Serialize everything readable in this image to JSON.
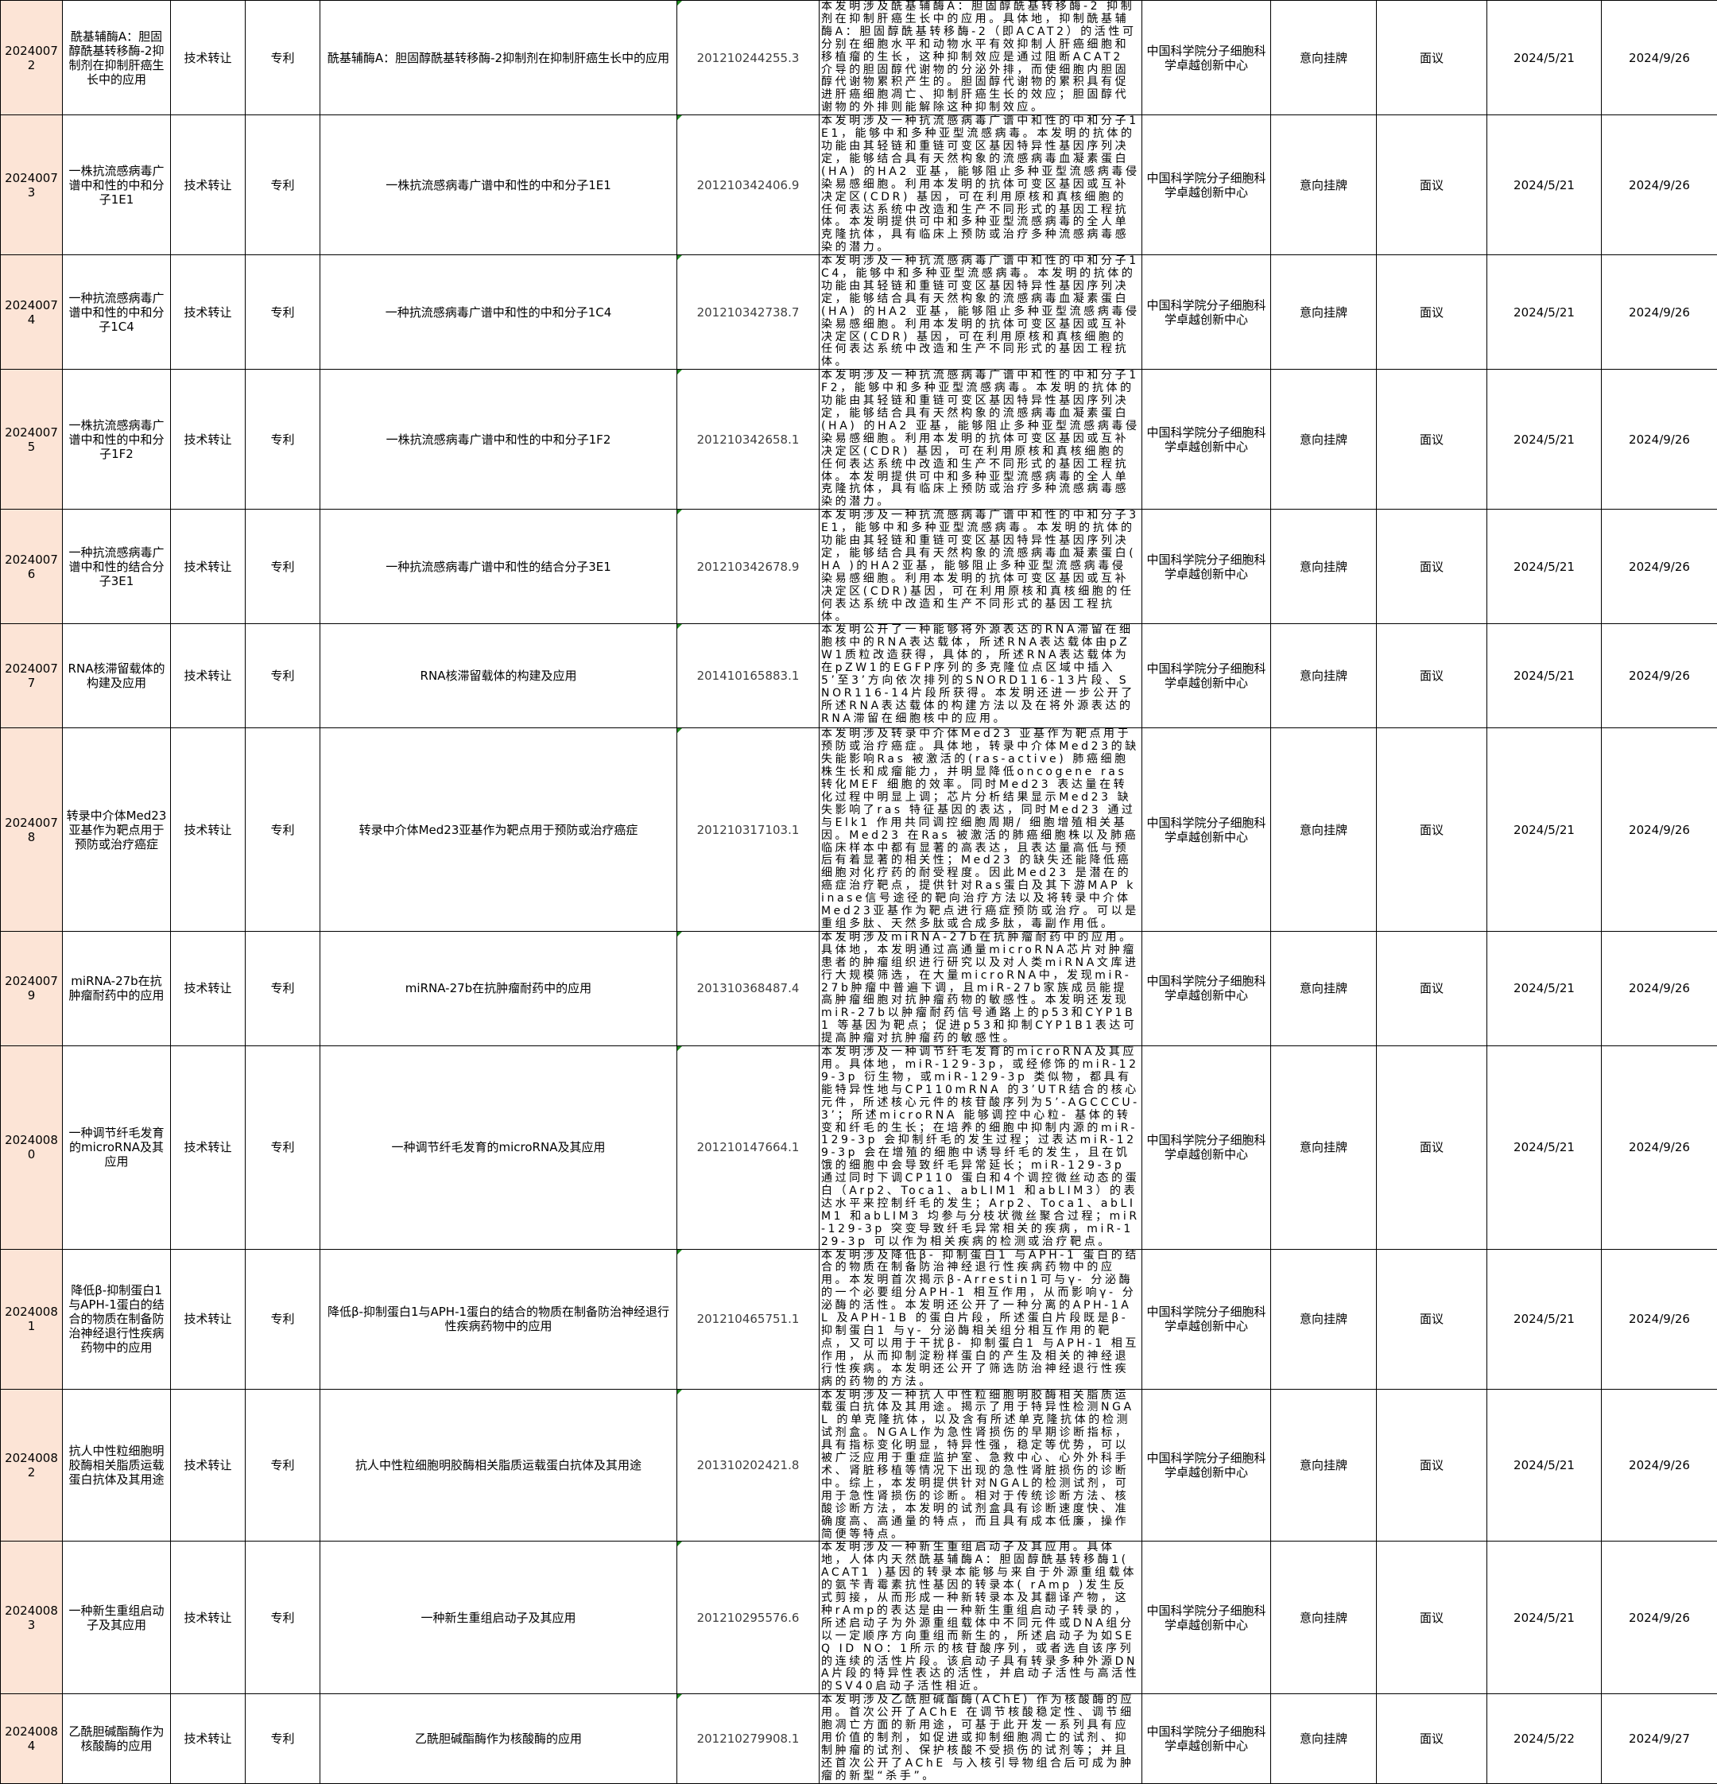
{
  "rows": [
    {
      "id": "20240072",
      "name": "酰基辅酶A：胆固醇酰基转移酶-2抑制剂在抑制肝癌生长中的应用",
      "mode": "技术转让",
      "type": "专利",
      "patent_name": "酰基辅酶A：胆固醇酰基转移酶-2抑制剂在抑制肝癌生长中的应用",
      "patent_no": "201210244255.3",
      "desc": "本发明涉及酰基辅酶A：胆固醇酰基转移酶-2 抑制剂在抑制肝癌生长中的应用。具体地，抑制酰基辅酶A：胆固醇酰基转移酶-2（即ACAT2）的活性可分别在细胞水平和动物水平有效抑制人肝癌细胞和移植瘤的生长，这种抑制效应是通过阻断ACAT2 介导的胆固醇代谢物的分泌外排，而使细胞内胆固醇代谢物累积产生的。胆固醇代谢物的累积具有促进肝癌细胞凋亡、抑制肝癌生长的效应；胆固醇代谢物的外排则能解除这种抑制效应。",
      "org": "中国科学院分子细胞科学卓越创新中心",
      "listing": "意向挂牌",
      "price": "面议",
      "start": "2024/5/21",
      "end": "2024/9/26"
    },
    {
      "id": "20240073",
      "name": "一株抗流感病毒广谱中和性的中和分子1E1",
      "mode": "技术转让",
      "type": "专利",
      "patent_name": "一株抗流感病毒广谱中和性的中和分子1E1",
      "patent_no": "201210342406.9",
      "desc": "本发明涉及一种抗流感病毒广谱中和性的中和分子1E1，能够中和多种亚型流感病毒。本发明的抗体的功能由其轻链和重链可变区基因特异性基因序列决定，能够结合具有天然构象的流感病毒血凝素蛋白(HA) 的HA2 亚基，能够阻止多种亚型流感病毒侵染易感细胞。利用本发明的抗体可变区基因或互补决定区(CDR) 基因，可在利用原核和真核细胞的任何表达系统中改造和生产不同形式的基因工程抗体。本发明提供可中和多种亚型流感病毒的全人单克隆抗体，具有临床上预防或治疗多种流感病毒感染的潜力。",
      "org": "中国科学院分子细胞科学卓越创新中心",
      "listing": "意向挂牌",
      "price": "面议",
      "start": "2024/5/21",
      "end": "2024/9/26"
    },
    {
      "id": "20240074",
      "name": "一种抗流感病毒广谱中和性的中和分子1C4",
      "mode": "技术转让",
      "type": "专利",
      "patent_name": "一种抗流感病毒广谱中和性的中和分子1C4",
      "patent_no": "201210342738.7",
      "desc": "本发明涉及一种抗流感病毒广谱中和性的中和分子1C4，能够中和多种亚型流感病毒。本发明的抗体的功能由其轻链和重链可变区基因特异性基因序列决定，能够结合具有天然构象的流感病毒血凝素蛋白(HA) 的HA2 亚基，能够阻止多种亚型流感病毒侵染易感细胞。利用本发明的抗体可变区基因或互补决定区(CDR) 基因，可在利用原核和真核细胞的任何表达系统中改造和生产不同形式的基因工程抗体。",
      "org": "中国科学院分子细胞科学卓越创新中心",
      "listing": "意向挂牌",
      "price": "面议",
      "start": "2024/5/21",
      "end": "2024/9/26"
    },
    {
      "id": "20240075",
      "name": "一株抗流感病毒广谱中和性的中和分子1F2",
      "mode": "技术转让",
      "type": "专利",
      "patent_name": "一株抗流感病毒广谱中和性的中和分子1F2",
      "patent_no": "201210342658.1",
      "desc": "本发明涉及一种抗流感病毒广谱中和性的中和分子1F2，能够中和多种亚型流感病毒。本发明的抗体的功能由其轻链和重链可变区基因特异性基因序列决定，能够结合具有天然构象的流感病毒血凝素蛋白(HA) 的HA2 亚基，能够阻止多种亚型流感病毒侵染易感细胞。利用本发明的抗体可变区基因或互补决定区(CDR) 基因，可在利用原核和真核细胞的任何表达系统中改造和生产不同形式的基因工程抗体。本发明提供可中和多种亚型流感病毒的全人单克隆抗体，具有临床上预防或治疗多种流感病毒感染的潜力。",
      "org": "中国科学院分子细胞科学卓越创新中心",
      "listing": "意向挂牌",
      "price": "面议",
      "start": "2024/5/21",
      "end": "2024/9/26"
    },
    {
      "id": "20240076",
      "name": "一种抗流感病毒广谱中和性的结合分子3E1",
      "mode": "技术转让",
      "type": "专利",
      "patent_name": "一种抗流感病毒广谱中和性的结合分子3E1",
      "patent_no": "201210342678.9",
      "desc": "本发明涉及一种抗流感病毒广谱中和性的中和分子3E1，能够中和多种亚型流感病毒。本发明的抗体的功能由其轻链和重链可变区基因特异性基因序列决定，能够结合具有天然构象的流感病毒血凝素蛋白( HA )的HA2亚基，能够阻止多种亚型流感病毒侵染易感细胞。利用本发明的抗体可变区基因或互补决定区(CDR)基因，可在利用原核和真核细胞的任何表达系统中改造和生产不同形式的基因工程抗体。",
      "org": "中国科学院分子细胞科学卓越创新中心",
      "listing": "意向挂牌",
      "price": "面议",
      "start": "2024/5/21",
      "end": "2024/9/26"
    },
    {
      "id": "20240077",
      "name": "RNA核滞留载体的构建及应用",
      "mode": "技术转让",
      "type": "专利",
      "patent_name": "RNA核滞留载体的构建及应用",
      "patent_no": "201410165883.1",
      "desc": "本发明公开了一种能够将外源表达的RNA滞留在细胞核中的RNA表达载体，所述RNA表达载体由pZW1质粒改造获得，具体的，所述RNA表达载体为在pZW1的EGFP序列的多克隆位点区域中插入5’至3’方向依次排列的SNORD116-13片段、SNOR116-14片段所获得。本发明还进一步公开了所述RNA表达载体的构建方法以及在将外源表达的RNA滞留在细胞核中的应用。",
      "org": "中国科学院分子细胞科学卓越创新中心",
      "listing": "意向挂牌",
      "price": "面议",
      "start": "2024/5/21",
      "end": "2024/9/26"
    },
    {
      "id": "20240078",
      "name": "转录中介体Med23亚基作为靶点用于预防或治疗癌症",
      "mode": "技术转让",
      "type": "专利",
      "patent_name": "转录中介体Med23亚基作为靶点用于预防或治疗癌症",
      "patent_no": "201210317103.1",
      "desc": "本发明涉及转录中介体Med23 亚基作为靶点用于预防或治疗癌症。具体地，转录中介体Med23的缺失能影响Ras 被激活的(ras-active) 肺癌细胞株生长和成瘤能力，并明显降低oncogene ras转化MEF 细胞的效率。同时Med23 表达量在转化过程中明显上调；芯片分析结果显示Med23 缺失影响了ras 特征基因的表达，同时Med23 通过与Elk1 作用共同调控细胞周期/ 细胞增殖相关基因。Med23 在Ras 被激活的肺癌细胞株以及肺癌临床样本中都有显著的高表达，且表达量高低与预后有着显著的相关性；Med23 的缺失还能降低癌细胞对化疗药的耐受程度。因此Med23 是潜在的癌症治疗靶点，提供针对Ras蛋白及其下游MAP kinase信号途径的靶向治疗方法以及将转录中介体Med23亚基作为靶点进行癌症预防或治疗。可以是重组多肽、天然多肽或合成多肽，毒副作用低。",
      "org": "中国科学院分子细胞科学卓越创新中心",
      "listing": "意向挂牌",
      "price": "面议",
      "start": "2024/5/21",
      "end": "2024/9/26"
    },
    {
      "id": "20240079",
      "name": "miRNA-27b在抗肿瘤耐药中的应用",
      "mode": "技术转让",
      "type": "专利",
      "patent_name": "miRNA-27b在抗肿瘤耐药中的应用",
      "patent_no": "201310368487.4",
      "desc": "本发明涉及miRNA-27b在抗肿瘤耐药中的应用。具体地，本发明通过高通量microRNA芯片对肿瘤患者的肿瘤组织进行研究以及对人类miRNA文库进行大规模筛选，在大量microRNA中，发现miR-27b肿瘤中普遍下调，且miR-27b家族成员能提高肿瘤细胞对抗肿瘤药物的敏感性。本发明还发现miR-27b以肿瘤耐药信号通路上的p53和CYP1B1 等基因为靶点；促进p53和抑制CYP1B1表达可提高肿瘤对抗肿瘤药的敏感性。",
      "org": "中国科学院分子细胞科学卓越创新中心",
      "listing": "意向挂牌",
      "price": "面议",
      "start": "2024/5/21",
      "end": "2024/9/26"
    },
    {
      "id": "20240080",
      "name": "一种调节纤毛发育的microRNA及其应用",
      "mode": "技术转让",
      "type": "专利",
      "patent_name": "一种调节纤毛发育的microRNA及其应用",
      "patent_no": "201210147664.1",
      "desc": "本发明涉及一种调节纤毛发育的microRNA及其应用。具体地，miR-129-3p，或经修饰的miR-129-3p 衍生物，或miR-129-3p 类似物，都具有能特异性地与CP110mRNA 的3’UTR结合的核心元件，所述核心元件的核苷酸序列为5’-AGCCCU-3’；所述microRNA 能够调控中心粒- 基体的转变和纤毛的生长；在培养的细胞中抑制内源的miR-129-3p 会抑制纤毛的发生过程；过表达miR-129-3p 会在增殖的细胞中诱导纤毛的发生，且在饥饿的细胞中会导致纤毛异常延长；miR-129-3p 通过同时下调CP110 蛋白和4个调控微丝动态的蛋白（Arp2、Toca1、abLIM1 和abLIM3）的表达水平来控制纤毛的发生；Arp2、Toca1、abLIM1 和abLIM3 均参与分枝状微丝聚合过程；miR-129-3p 突变导致纤毛异常相关的疾病，miR-129-3p 可以作为相关疾病的检测或治疗靶点。",
      "org": "中国科学院分子细胞科学卓越创新中心",
      "listing": "意向挂牌",
      "price": "面议",
      "start": "2024/5/21",
      "end": "2024/9/26"
    },
    {
      "id": "20240081",
      "name": "降低β-抑制蛋白1与APH-1蛋白的结合的物质在制备防治神经退行性疾病药物中的应用",
      "mode": "技术转让",
      "type": "专利",
      "patent_name": "降低β-抑制蛋白1与APH-1蛋白的结合的物质在制备防治神经退行性疾病药物中的应用",
      "patent_no": "201210465751.1",
      "desc": "本发明涉及降低β- 抑制蛋白1 与APH-1 蛋白的结合的物质在制备防治神经退行性疾病药物中的应用。本发明首次揭示β-Arrestin1可与γ- 分泌酶的一个必要组分APH-1 相互作用，从而影响γ- 分泌酶的活性。本发明还公开了一种分离的APH-1AL 及APH-1B 的蛋白片段，所述蛋白片段既是β-抑制蛋白1 与γ- 分泌酶相关组分相互作用的靶点，又可以用于干扰β- 抑制蛋白1 与APH-1 相互作用，从而抑制淀粉样蛋白的产生及相关的神经退行性疾病。本发明还公开了筛选防治神经退行性疾病的药物的方法。",
      "org": "中国科学院分子细胞科学卓越创新中心",
      "listing": "意向挂牌",
      "price": "面议",
      "start": "2024/5/21",
      "end": "2024/9/26"
    },
    {
      "id": "20240082",
      "name": "抗人中性粒细胞明胶酶相关脂质运载蛋白抗体及其用途",
      "mode": "技术转让",
      "type": "专利",
      "patent_name": "抗人中性粒细胞明胶酶相关脂质运载蛋白抗体及其用途",
      "patent_no": "201310202421.8",
      "desc": "本发明涉及一种抗人中性粒细胞明胶酶相关脂质运载蛋白抗体及其用途。揭示了用于特异性检测NGAL 的单克隆抗体，以及含有所述单克隆抗体的检测试剂盒。NGAL作为急性肾损伤的早期诊断指标，具有指标变化明显，特异性强，稳定等优势，可以被广泛应用于重症监护室、急救中心、心外外科手术、肾脏移植等情况下出现的急性肾脏损伤的诊断中。综上，本发明提供针对NGAL的检测试剂，可用于急性肾损伤的诊断。相对于传统诊断方法、核酸诊断方法，本发明的试剂盒具有诊断速度快、准确度高、高通量的特点，而且具有成本低廉，操作简便等特点。",
      "org": "中国科学院分子细胞科学卓越创新中心",
      "listing": "意向挂牌",
      "price": "面议",
      "start": "2024/5/21",
      "end": "2024/9/26"
    },
    {
      "id": "20240083",
      "name": "一种新生重组启动子及其应用",
      "mode": "技术转让",
      "type": "专利",
      "patent_name": "一种新生重组启动子及其应用",
      "patent_no": "201210295576.6",
      "desc": "本发明涉及一种新生重组启动子及其应用。具体地，人体内天然酰基辅酶A：胆固醇酰基转移酶1( ACAT1 )基因的转录本能够与来自于外源重组载体的氨苄青霉素抗性基因的转录本( rAmp )发生反式剪接，从而形成一种新转录本及其翻译产物，这种rAmp的表达是由一种新生重组启动子转录的，所述启动子为外源重组载体中不同元件或DNA组分以一定顺序方向重组而新生的，所述启动子为如SEQ ID NO：1所示的核苷酸序列，或者选自该序列的连续的活性片段。该启动子具有转录多种外源DNA片段的特异性表达的活性，并启动子活性与高活性的SV40启动子活性相近。",
      "org": "中国科学院分子细胞科学卓越创新中心",
      "listing": "意向挂牌",
      "price": "面议",
      "start": "2024/5/21",
      "end": "2024/9/26"
    },
    {
      "id": "20240084",
      "name": "乙酰胆碱酯酶作为核酸酶的应用",
      "mode": "技术转让",
      "type": "专利",
      "patent_name": "乙酰胆碱酯酶作为核酸酶的应用",
      "patent_no": "201210279908.1",
      "desc": "本发明涉及乙酰胆碱酯酶(AChE) 作为核酸酶的应用。首次公开了AChE 在调节核酸稳定性、调节细胞凋亡方面的新用途，可基于此开发一系列具有应用价值的制剂，如促进或抑制细胞凋亡的试剂、抑制肿瘤的试剂、保护核酸不受损伤的试剂等；并且还首次公开了AChE 与入核引导物组合后可成为肿瘤的新型“杀手”。",
      "org": "中国科学院分子细胞科学卓越创新中心",
      "listing": "意向挂牌",
      "price": "面议",
      "start": "2024/5/22",
      "end": "2024/9/27"
    }
  ],
  "colors": {
    "id_column_bg": "#fce4d6",
    "border": "#000000",
    "patent_no_text": "#404040",
    "cell_marker": "#1e8a1e"
  }
}
